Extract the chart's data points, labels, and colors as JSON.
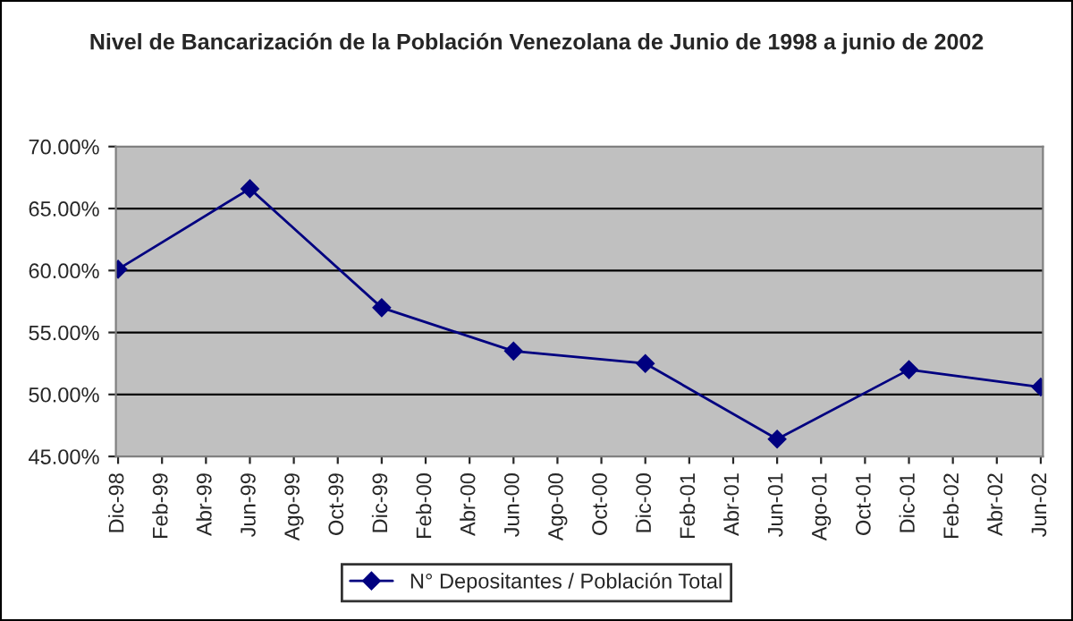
{
  "chart_data": {
    "type": "line",
    "title": "Nivel de Bancarización de la Población Venezolana de Junio de 1998 a junio de 2002",
    "categories": [
      "Dic-98",
      "Feb-99",
      "Abr-99",
      "Jun-99",
      "Ago-99",
      "Oct-99",
      "Dic-99",
      "Feb-00",
      "Abr-00",
      "Jun-00",
      "Ago-00",
      "Oct-00",
      "Dic-00",
      "Feb-01",
      "Abr-01",
      "Jun-01",
      "Ago-01",
      "Oct-01",
      "Dic-01",
      "Feb-02",
      "Abr-02",
      "Jun-02"
    ],
    "series": [
      {
        "name": "N° Depositantes / Población Total",
        "color": "#000080",
        "values": [
          60.1,
          null,
          null,
          66.6,
          null,
          null,
          57.0,
          null,
          null,
          53.5,
          null,
          null,
          52.5,
          null,
          null,
          46.4,
          null,
          null,
          52.0,
          null,
          null,
          50.6
        ]
      }
    ],
    "ylim": [
      45,
      70
    ],
    "yticks": [
      {
        "value": 45,
        "label": "45.00%"
      },
      {
        "value": 50,
        "label": "50.00%"
      },
      {
        "value": 55,
        "label": "55.00%"
      },
      {
        "value": 60,
        "label": "60.00%"
      },
      {
        "value": 65,
        "label": "65.00%"
      },
      {
        "value": 70,
        "label": "70.00%"
      }
    ],
    "grid": "y",
    "legend": "bottom",
    "marker": "diamond",
    "line_style": "solid"
  }
}
